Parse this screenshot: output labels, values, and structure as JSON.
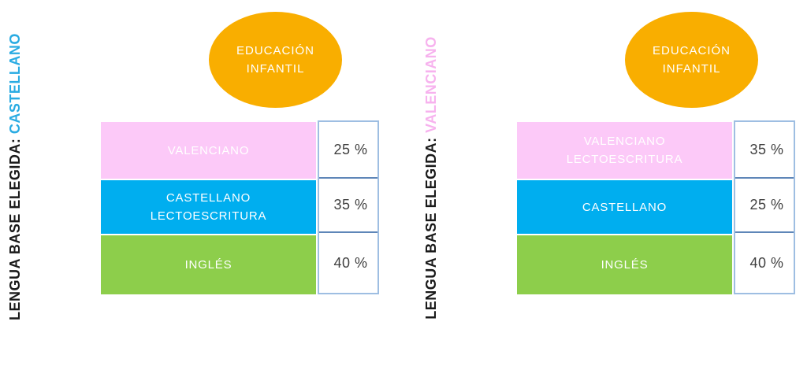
{
  "page": {
    "background": "#FFFFFF"
  },
  "colors": {
    "orange": "#F9AE00",
    "pink": "#FCC9F8",
    "blue": "#00AEEF",
    "green": "#8DCE4B",
    "label_dark": "#1A1A1A",
    "bar_text": "#FFFFFF",
    "percent_text": "#404040",
    "border_outer": "#9EBEE2",
    "separator": "#5E86B8"
  },
  "chart_data": [
    {
      "type": "bar",
      "title": "EDUCACIÓN INFANTIL — LENGUA BASE ELEGIDA: CASTELLANO",
      "categories": [
        "VALENCIANO",
        "CASTELLANO LECTOESCRITURA",
        "INGLÉS"
      ],
      "values": [
        25,
        35,
        40
      ],
      "unit": "%"
    },
    {
      "type": "bar",
      "title": "EDUCACIÓN INFANTIL — LENGUA BASE ELEGIDA: VALENCIANO",
      "categories": [
        "VALENCIANO LECTOESCRITURA",
        "CASTELLANO",
        "INGLÉS"
      ],
      "values": [
        35,
        25,
        40
      ],
      "unit": "%"
    }
  ],
  "panels": [
    {
      "side_label_prefix": "LENGUA BASE ELEGIDA: ",
      "side_label_value": "CASTELLANO",
      "side_label_color": "#29ABE2",
      "ellipse": {
        "line1": "EDUCACIÓN",
        "line2": "INFANTIL"
      },
      "rows": [
        {
          "line1": "VALENCIANO",
          "line2": "",
          "color": "#FCC9F8",
          "percent": "25 %"
        },
        {
          "line1": "CASTELLANO",
          "line2": "LECTOESCRITURA",
          "color": "#00AEEF",
          "percent": "35 %"
        },
        {
          "line1": "INGLÉS",
          "line2": "",
          "color": "#8DCE4B",
          "percent": "40 %"
        }
      ]
    },
    {
      "side_label_prefix": "LENGUA BASE ELEGIDA: ",
      "side_label_value": "VALENCIANO",
      "side_label_color": "#F7B2EE",
      "ellipse": {
        "line1": "EDUCACIÓN",
        "line2": "INFANTIL"
      },
      "rows": [
        {
          "line1": "VALENCIANO",
          "line2": "LECTOESCRITURA",
          "color": "#FCC9F8",
          "percent": "35 %"
        },
        {
          "line1": "CASTELLANO",
          "line2": "",
          "color": "#00AEEF",
          "percent": "25 %"
        },
        {
          "line1": "INGLÉS",
          "line2": "",
          "color": "#8DCE4B",
          "percent": "40 %"
        }
      ]
    }
  ]
}
